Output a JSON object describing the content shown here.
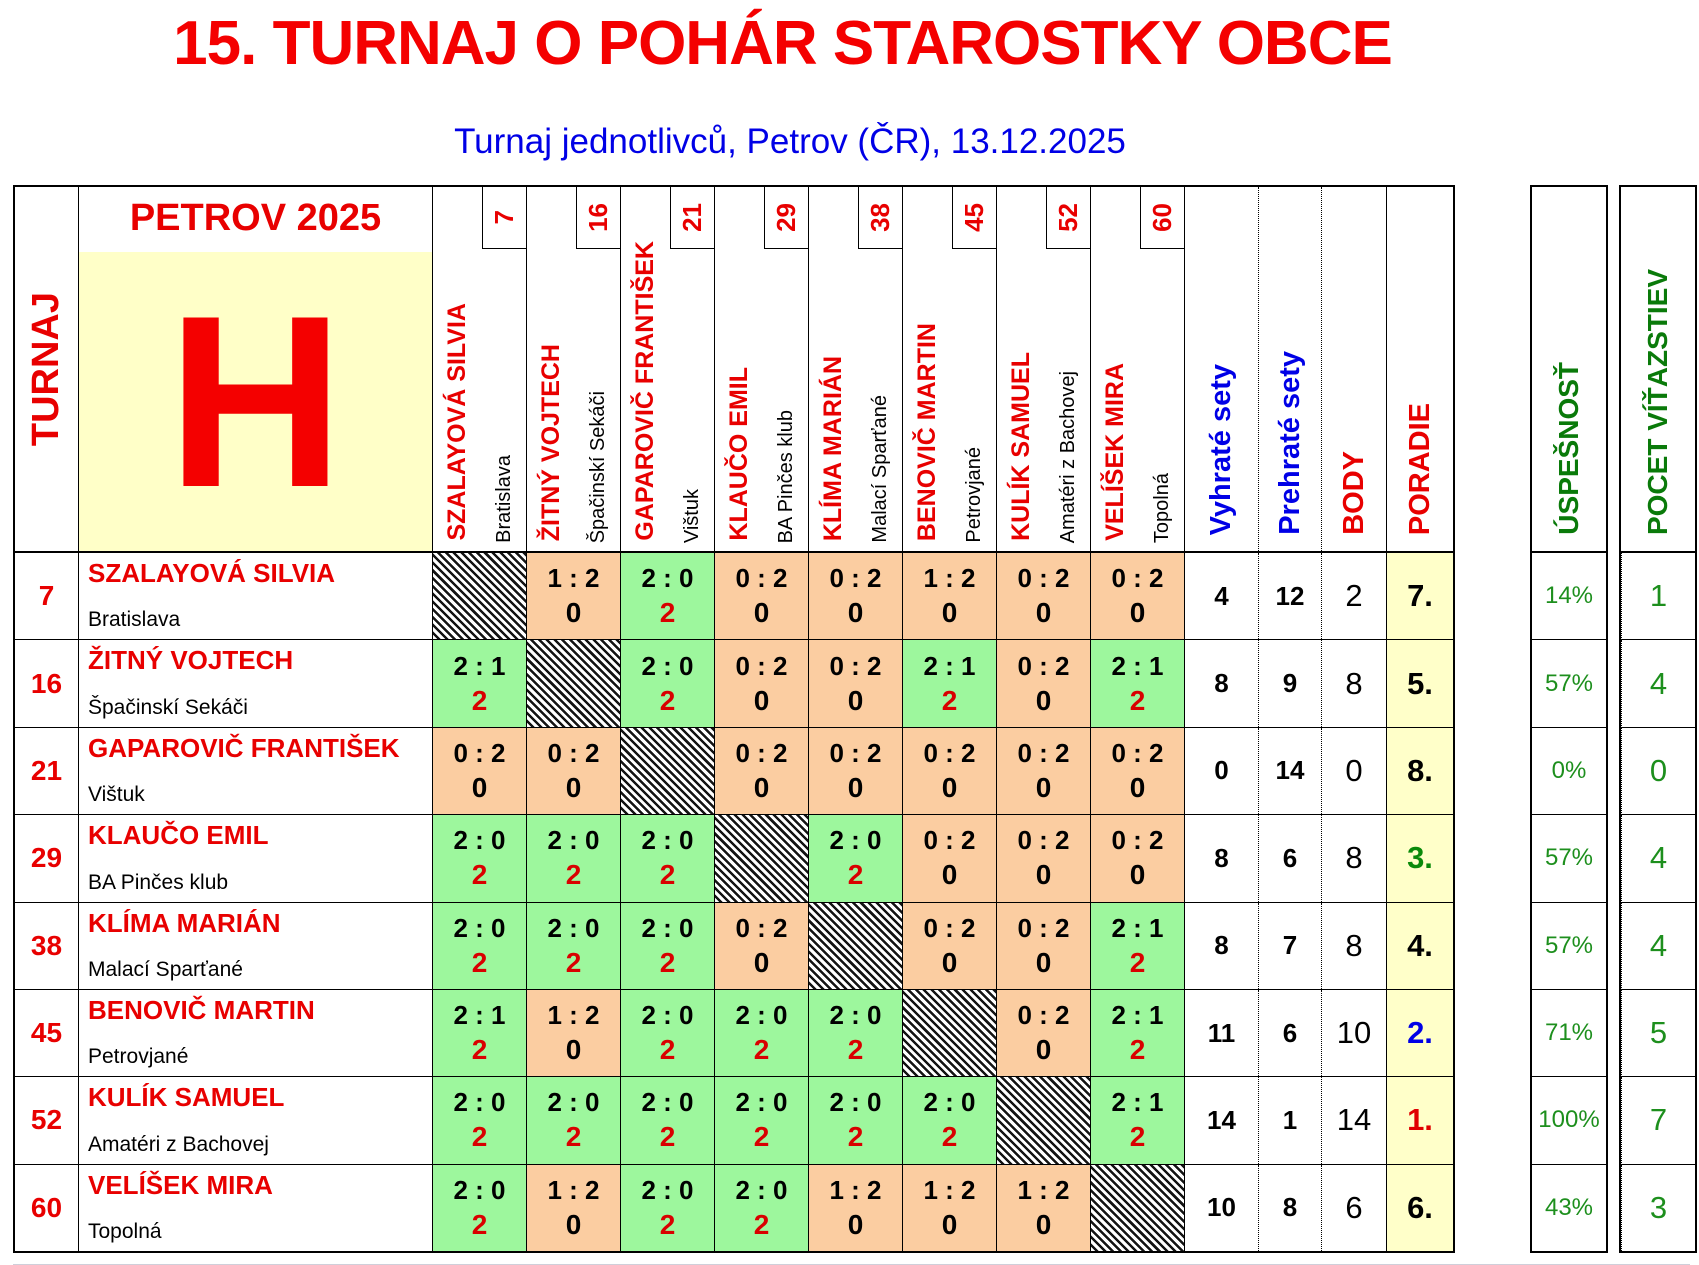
{
  "title": "15. TURNAJ O POHÁR STAROSTKY OBCE",
  "subtitle": "Turnaj jednotlivců, Petrov (ČR), 13.12.2025",
  "table": {
    "corner_label": "TURNAJ",
    "header_label": "PETROV 2025",
    "group_letter": "H",
    "stat_headers": {
      "won_sets": "Vyhraté sety",
      "lost_sets": "Prehraté sety",
      "points": "BODY",
      "rank": "PORADIE"
    },
    "players": [
      {
        "id": "7",
        "name": "SZALAYOVÁ SILVIA",
        "club": "Bratislava"
      },
      {
        "id": "16",
        "name": "ŽITNÝ VOJTECH",
        "club": "Špačinskí Sekáči"
      },
      {
        "id": "21",
        "name": "GAPAROVIČ FRANTIŠEK",
        "club": "Vištuk"
      },
      {
        "id": "29",
        "name": "KLAUČO EMIL",
        "club": "BA Pinčes klub"
      },
      {
        "id": "38",
        "name": "KLÍMA MARIÁN",
        "club": "Malací Sparťané"
      },
      {
        "id": "45",
        "name": "BENOVIČ MARTIN",
        "club": "Petrovjané"
      },
      {
        "id": "52",
        "name": "KULÍK SAMUEL",
        "club": "Amatéri z Bachovej"
      },
      {
        "id": "60",
        "name": "VELÍŠEK MIRA",
        "club": "Topolná"
      }
    ],
    "rows": [
      {
        "id": "7",
        "name": "SZALAYOVÁ SILVIA",
        "club": "Bratislava",
        "matches": [
          {
            "result": "self"
          },
          {
            "score": "1 : 2",
            "pts": "0",
            "result": "loss"
          },
          {
            "score": "2 : 0",
            "pts": "2",
            "result": "win"
          },
          {
            "score": "0 : 2",
            "pts": "0",
            "result": "loss"
          },
          {
            "score": "0 : 2",
            "pts": "0",
            "result": "loss"
          },
          {
            "score": "1 : 2",
            "pts": "0",
            "result": "loss"
          },
          {
            "score": "0 : 2",
            "pts": "0",
            "result": "loss"
          },
          {
            "score": "0 : 2",
            "pts": "0",
            "result": "loss"
          }
        ],
        "won": "4",
        "lost": "12",
        "points": "2",
        "rank": "7.",
        "rank_color": "#000000",
        "success": "14%",
        "wins": "1"
      },
      {
        "id": "16",
        "name": "ŽITNÝ VOJTECH",
        "club": "Špačinskí Sekáči",
        "matches": [
          {
            "score": "2 : 1",
            "pts": "2",
            "result": "win"
          },
          {
            "result": "self"
          },
          {
            "score": "2 : 0",
            "pts": "2",
            "result": "win"
          },
          {
            "score": "0 : 2",
            "pts": "0",
            "result": "loss"
          },
          {
            "score": "0 : 2",
            "pts": "0",
            "result": "loss"
          },
          {
            "score": "2 : 1",
            "pts": "2",
            "result": "win"
          },
          {
            "score": "0 : 2",
            "pts": "0",
            "result": "loss"
          },
          {
            "score": "2 : 1",
            "pts": "2",
            "result": "win"
          }
        ],
        "won": "8",
        "lost": "9",
        "points": "8",
        "rank": "5.",
        "rank_color": "#000000",
        "success": "57%",
        "wins": "4"
      },
      {
        "id": "21",
        "name": "GAPAROVIČ FRANTIŠEK",
        "club": "Vištuk",
        "matches": [
          {
            "score": "0 : 2",
            "pts": "0",
            "result": "loss"
          },
          {
            "score": "0 : 2",
            "pts": "0",
            "result": "loss"
          },
          {
            "result": "self"
          },
          {
            "score": "0 : 2",
            "pts": "0",
            "result": "loss"
          },
          {
            "score": "0 : 2",
            "pts": "0",
            "result": "loss"
          },
          {
            "score": "0 : 2",
            "pts": "0",
            "result": "loss"
          },
          {
            "score": "0 : 2",
            "pts": "0",
            "result": "loss"
          },
          {
            "score": "0 : 2",
            "pts": "0",
            "result": "loss"
          }
        ],
        "won": "0",
        "lost": "14",
        "points": "0",
        "rank": "8.",
        "rank_color": "#000000",
        "success": "0%",
        "wins": "0"
      },
      {
        "id": "29",
        "name": "KLAUČO EMIL",
        "club": "BA Pinčes klub",
        "matches": [
          {
            "score": "2 : 0",
            "pts": "2",
            "result": "win"
          },
          {
            "score": "2 : 0",
            "pts": "2",
            "result": "win"
          },
          {
            "score": "2 : 0",
            "pts": "2",
            "result": "win"
          },
          {
            "result": "self"
          },
          {
            "score": "2 : 0",
            "pts": "2",
            "result": "win"
          },
          {
            "score": "0 : 2",
            "pts": "0",
            "result": "loss"
          },
          {
            "score": "0 : 2",
            "pts": "0",
            "result": "loss"
          },
          {
            "score": "0 : 2",
            "pts": "0",
            "result": "loss"
          }
        ],
        "won": "8",
        "lost": "6",
        "points": "8",
        "rank": "3.",
        "rank_color": "#0a8a0a",
        "success": "57%",
        "wins": "4"
      },
      {
        "id": "38",
        "name": "KLÍMA MARIÁN",
        "club": "Malací Sparťané",
        "matches": [
          {
            "score": "2 : 0",
            "pts": "2",
            "result": "win"
          },
          {
            "score": "2 : 0",
            "pts": "2",
            "result": "win"
          },
          {
            "score": "2 : 0",
            "pts": "2",
            "result": "win"
          },
          {
            "score": "0 : 2",
            "pts": "0",
            "result": "loss"
          },
          {
            "result": "self"
          },
          {
            "score": "0 : 2",
            "pts": "0",
            "result": "loss"
          },
          {
            "score": "0 : 2",
            "pts": "0",
            "result": "loss"
          },
          {
            "score": "2 : 1",
            "pts": "2",
            "result": "win"
          }
        ],
        "won": "8",
        "lost": "7",
        "points": "8",
        "rank": "4.",
        "rank_color": "#000000",
        "success": "57%",
        "wins": "4"
      },
      {
        "id": "45",
        "name": "BENOVIČ MARTIN",
        "club": "Petrovjané",
        "matches": [
          {
            "score": "2 : 1",
            "pts": "2",
            "result": "win"
          },
          {
            "score": "1 : 2",
            "pts": "0",
            "result": "loss"
          },
          {
            "score": "2 : 0",
            "pts": "2",
            "result": "win"
          },
          {
            "score": "2 : 0",
            "pts": "2",
            "result": "win"
          },
          {
            "score": "2 : 0",
            "pts": "2",
            "result": "win"
          },
          {
            "result": "self"
          },
          {
            "score": "0 : 2",
            "pts": "0",
            "result": "loss"
          },
          {
            "score": "2 : 1",
            "pts": "2",
            "result": "win"
          }
        ],
        "won": "11",
        "lost": "6",
        "points": "10",
        "rank": "2.",
        "rank_color": "#0000e6",
        "success": "71%",
        "wins": "5"
      },
      {
        "id": "52",
        "name": "KULÍK SAMUEL",
        "club": "Amatéri z Bachovej",
        "matches": [
          {
            "score": "2 : 0",
            "pts": "2",
            "result": "win"
          },
          {
            "score": "2 : 0",
            "pts": "2",
            "result": "win"
          },
          {
            "score": "2 : 0",
            "pts": "2",
            "result": "win"
          },
          {
            "score": "2 : 0",
            "pts": "2",
            "result": "win"
          },
          {
            "score": "2 : 0",
            "pts": "2",
            "result": "win"
          },
          {
            "score": "2 : 0",
            "pts": "2",
            "result": "win"
          },
          {
            "result": "self"
          },
          {
            "score": "2 : 1",
            "pts": "2",
            "result": "win"
          }
        ],
        "won": "14",
        "lost": "1",
        "points": "14",
        "rank": "1.",
        "rank_color": "#e00000",
        "success": "100%",
        "wins": "7"
      },
      {
        "id": "60",
        "name": "VELÍŠEK MIRA",
        "club": "Topolná",
        "matches": [
          {
            "score": "2 : 0",
            "pts": "2",
            "result": "win"
          },
          {
            "score": "1 : 2",
            "pts": "0",
            "result": "loss"
          },
          {
            "score": "2 : 0",
            "pts": "2",
            "result": "win"
          },
          {
            "score": "2 : 0",
            "pts": "2",
            "result": "win"
          },
          {
            "score": "1 : 2",
            "pts": "0",
            "result": "loss"
          },
          {
            "score": "1 : 2",
            "pts": "0",
            "result": "loss"
          },
          {
            "score": "1 : 2",
            "pts": "0",
            "result": "loss"
          },
          {
            "result": "self"
          }
        ],
        "won": "10",
        "lost": "8",
        "points": "6",
        "rank": "6.",
        "rank_color": "#000000",
        "success": "43%",
        "wins": "3"
      }
    ]
  },
  "success_table": {
    "header": "ÚSPEŠNOSŤ"
  },
  "wins_table": {
    "header": "POCET VÍŤAZSTIEV"
  },
  "colors": {
    "title_red": "#f40000",
    "subtitle_blue": "#0000e6",
    "name_red": "#e80000",
    "win_bg": "#9df79d",
    "loss_bg": "#fbcda1",
    "rank_bg": "#ffffc9",
    "group_panel_bg": "#ffffc8",
    "stat_green": "#1d8f1d"
  }
}
